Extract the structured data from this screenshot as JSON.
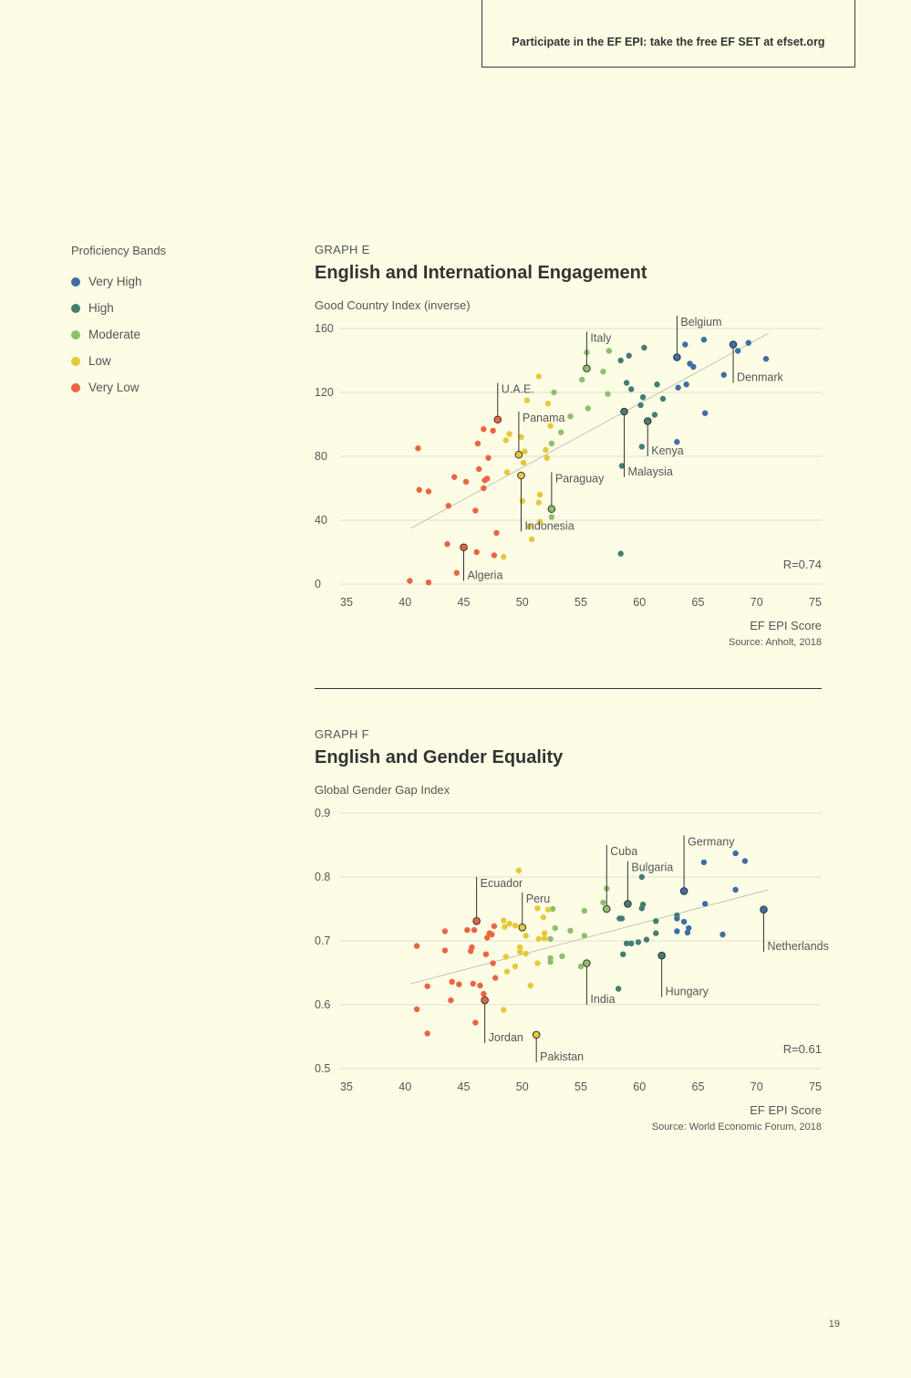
{
  "banner": {
    "text": "Participate in the EF EPI: take the free EF SET at efset.org"
  },
  "legend": {
    "title": "Proficiency Bands",
    "items": [
      {
        "label": "Very High",
        "color": "#3e6ea3"
      },
      {
        "label": "High",
        "color": "#447d72"
      },
      {
        "label": "Moderate",
        "color": "#8fbf6d"
      },
      {
        "label": "Low",
        "color": "#e6c938"
      },
      {
        "label": "Very Low",
        "color": "#ec6440"
      }
    ]
  },
  "page_number": "19",
  "chart_data": [
    {
      "type": "scatter",
      "graph_label": "GRAPH E",
      "title": "English and International Engagement",
      "ylabel": "Good Country Index (inverse)",
      "xlabel": "EF EPI Score",
      "source": "Source: Anholt, 2018",
      "annotation": "R=0.74",
      "xlim": [
        35,
        75
      ],
      "ylim": [
        0,
        160
      ],
      "xticks": [
        35,
        40,
        45,
        50,
        55,
        60,
        65,
        70,
        75
      ],
      "yticks": [
        0,
        40,
        80,
        120,
        160
      ],
      "trend": [
        [
          40.5,
          35
        ],
        [
          71,
          157
        ]
      ],
      "points": [
        [
          68.0,
          150,
          0
        ],
        [
          68.4,
          146,
          0
        ],
        [
          69.3,
          151,
          0
        ],
        [
          70.8,
          141,
          0
        ],
        [
          65.5,
          153,
          0
        ],
        [
          63.2,
          142,
          0
        ],
        [
          63.9,
          150,
          0
        ],
        [
          64.3,
          138,
          0
        ],
        [
          64.6,
          136,
          0
        ],
        [
          63.3,
          123,
          0
        ],
        [
          64.0,
          125,
          0
        ],
        [
          65.6,
          107,
          0
        ],
        [
          67.2,
          131,
          0
        ],
        [
          63.2,
          89,
          0
        ],
        [
          60.4,
          148,
          1
        ],
        [
          59.1,
          143,
          1
        ],
        [
          58.4,
          140,
          1
        ],
        [
          58.9,
          126,
          1
        ],
        [
          59.3,
          122,
          1
        ],
        [
          60.1,
          112,
          1
        ],
        [
          60.3,
          117,
          1
        ],
        [
          61.5,
          125,
          1
        ],
        [
          62.0,
          116,
          1
        ],
        [
          58.7,
          108,
          1
        ],
        [
          60.7,
          102,
          1
        ],
        [
          61.3,
          106,
          1
        ],
        [
          60.2,
          86,
          1
        ],
        [
          58.5,
          74,
          1
        ],
        [
          58.4,
          19,
          1
        ],
        [
          57.4,
          146,
          2
        ],
        [
          55.5,
          135,
          2
        ],
        [
          55.5,
          145,
          2
        ],
        [
          55.1,
          128,
          2
        ],
        [
          56.9,
          133,
          2
        ],
        [
          57.3,
          119,
          2
        ],
        [
          55.6,
          110,
          2
        ],
        [
          52.7,
          120,
          2
        ],
        [
          54.1,
          105,
          2
        ],
        [
          53.3,
          95,
          2
        ],
        [
          52.5,
          88,
          2
        ],
        [
          52.5,
          47,
          2
        ],
        [
          52.5,
          42,
          2
        ],
        [
          51.4,
          130,
          3
        ],
        [
          50.4,
          115,
          3
        ],
        [
          52.2,
          113,
          3
        ],
        [
          52.4,
          99,
          3
        ],
        [
          49.9,
          92,
          3
        ],
        [
          49.7,
          81,
          3
        ],
        [
          50.2,
          83,
          3
        ],
        [
          48.9,
          94,
          3
        ],
        [
          48.6,
          90,
          3
        ],
        [
          48.7,
          70,
          3
        ],
        [
          50.1,
          76,
          3
        ],
        [
          52.0,
          84,
          3
        ],
        [
          52.1,
          79,
          3
        ],
        [
          49.9,
          68,
          3
        ],
        [
          51.5,
          56,
          3
        ],
        [
          51.4,
          51,
          3
        ],
        [
          50.0,
          52,
          3
        ],
        [
          51.5,
          39,
          3
        ],
        [
          50.8,
          28,
          3
        ],
        [
          48.4,
          17,
          3
        ],
        [
          50.6,
          36,
          3
        ],
        [
          47.9,
          103,
          4
        ],
        [
          46.7,
          97,
          4
        ],
        [
          47.5,
          96,
          4
        ],
        [
          46.2,
          88,
          4
        ],
        [
          47.1,
          79,
          4
        ],
        [
          41.1,
          85,
          4
        ],
        [
          46.3,
          72,
          4
        ],
        [
          47.0,
          66,
          4
        ],
        [
          46.8,
          65,
          4
        ],
        [
          45.2,
          64,
          4
        ],
        [
          44.2,
          67,
          4
        ],
        [
          46.7,
          60,
          4
        ],
        [
          41.2,
          59,
          4
        ],
        [
          42.0,
          58,
          4
        ],
        [
          43.7,
          49,
          4
        ],
        [
          46.0,
          46,
          4
        ],
        [
          47.8,
          32,
          4
        ],
        [
          43.6,
          25,
          4
        ],
        [
          45.0,
          23,
          4
        ],
        [
          46.1,
          20,
          4
        ],
        [
          47.6,
          18,
          4
        ],
        [
          44.4,
          7,
          4
        ],
        [
          40.4,
          2,
          4
        ],
        [
          42.0,
          1,
          4
        ]
      ],
      "labels": [
        {
          "text": "Belgium",
          "x": 63.2,
          "y": 142,
          "lx": 63.2,
          "ly": 168,
          "side": "right"
        },
        {
          "text": "Denmark",
          "x": 68.0,
          "y": 150,
          "lx": 68.0,
          "ly": 126,
          "side": "right"
        },
        {
          "text": "Italy",
          "x": 55.5,
          "y": 135,
          "lx": 55.5,
          "ly": 158,
          "side": "right"
        },
        {
          "text": "U.A.E.",
          "x": 47.9,
          "y": 103,
          "lx": 47.9,
          "ly": 126,
          "side": "right"
        },
        {
          "text": "Panama",
          "x": 49.7,
          "y": 81,
          "lx": 49.7,
          "ly": 108,
          "side": "right"
        },
        {
          "text": "Paraguay",
          "x": 52.5,
          "y": 47,
          "lx": 52.5,
          "ly": 70,
          "side": "right"
        },
        {
          "text": "Indonesia",
          "x": 49.9,
          "y": 68,
          "lx": 49.9,
          "ly": 33,
          "side": "right"
        },
        {
          "text": "Algeria",
          "x": 45.0,
          "y": 23,
          "lx": 45.0,
          "ly": 2,
          "side": "right"
        },
        {
          "text": "Malaysia",
          "x": 58.7,
          "y": 108,
          "lx": 58.7,
          "ly": 67,
          "side": "right"
        },
        {
          "text": "Kenya",
          "x": 60.7,
          "y": 102,
          "lx": 60.7,
          "ly": 80,
          "side": "right"
        }
      ]
    },
    {
      "type": "scatter",
      "graph_label": "GRAPH F",
      "title": "English and Gender Equality",
      "ylabel": "Global Gender Gap Index",
      "xlabel": "EF EPI Score",
      "source": "Source: World Economic Forum, 2018",
      "annotation": "R=0.61",
      "xlim": [
        35,
        75
      ],
      "ylim": [
        0.5,
        0.9
      ],
      "xticks": [
        35,
        40,
        45,
        50,
        55,
        60,
        65,
        70,
        75
      ],
      "yticks": [
        0.5,
        0.6,
        0.7,
        0.8,
        0.9
      ],
      "ytick_labels": [
        "0.5",
        "0.6",
        "0.7",
        "0.8",
        "0.9"
      ],
      "trend": [
        [
          40.5,
          0.633
        ],
        [
          71,
          0.78
        ]
      ],
      "points": [
        [
          68.2,
          0.837,
          0
        ],
        [
          69.0,
          0.825,
          0
        ],
        [
          68.2,
          0.78,
          0
        ],
        [
          63.8,
          0.778,
          0
        ],
        [
          65.5,
          0.823,
          0
        ],
        [
          65.6,
          0.758,
          0
        ],
        [
          70.6,
          0.749,
          0
        ],
        [
          63.2,
          0.735,
          0
        ],
        [
          63.8,
          0.73,
          0
        ],
        [
          64.2,
          0.72,
          0
        ],
        [
          63.2,
          0.715,
          0
        ],
        [
          64.1,
          0.713,
          0
        ],
        [
          67.1,
          0.71,
          0
        ],
        [
          60.2,
          0.8,
          1
        ],
        [
          59.0,
          0.758,
          1
        ],
        [
          60.3,
          0.757,
          1
        ],
        [
          60.2,
          0.751,
          1
        ],
        [
          58.3,
          0.735,
          1
        ],
        [
          58.5,
          0.735,
          1
        ],
        [
          61.4,
          0.731,
          1
        ],
        [
          63.2,
          0.74,
          1
        ],
        [
          61.4,
          0.712,
          1
        ],
        [
          58.9,
          0.696,
          1
        ],
        [
          59.3,
          0.696,
          1
        ],
        [
          59.9,
          0.698,
          1
        ],
        [
          60.6,
          0.702,
          1
        ],
        [
          58.6,
          0.679,
          1
        ],
        [
          61.9,
          0.677,
          1
        ],
        [
          58.2,
          0.625,
          1
        ],
        [
          57.2,
          0.782,
          2
        ],
        [
          56.9,
          0.76,
          2
        ],
        [
          57.2,
          0.75,
          2
        ],
        [
          55.3,
          0.747,
          2
        ],
        [
          52.6,
          0.75,
          2
        ],
        [
          52.8,
          0.72,
          2
        ],
        [
          54.1,
          0.716,
          2
        ],
        [
          55.3,
          0.708,
          2
        ],
        [
          52.4,
          0.703,
          2
        ],
        [
          53.4,
          0.676,
          2
        ],
        [
          52.4,
          0.667,
          2
        ],
        [
          52.4,
          0.673,
          2
        ],
        [
          55.5,
          0.665,
          2
        ],
        [
          55.0,
          0.66,
          2
        ],
        [
          49.7,
          0.81,
          3
        ],
        [
          50.0,
          0.721,
          3
        ],
        [
          51.3,
          0.751,
          3
        ],
        [
          52.2,
          0.749,
          3
        ],
        [
          48.4,
          0.732,
          3
        ],
        [
          48.9,
          0.727,
          3
        ],
        [
          49.4,
          0.724,
          3
        ],
        [
          48.5,
          0.722,
          3
        ],
        [
          50.3,
          0.708,
          3
        ],
        [
          51.4,
          0.703,
          3
        ],
        [
          51.9,
          0.712,
          3
        ],
        [
          51.9,
          0.704,
          3
        ],
        [
          51.8,
          0.737,
          3
        ],
        [
          49.8,
          0.69,
          3
        ],
        [
          49.8,
          0.683,
          3
        ],
        [
          50.3,
          0.68,
          3
        ],
        [
          48.6,
          0.675,
          3
        ],
        [
          49.4,
          0.66,
          3
        ],
        [
          48.7,
          0.652,
          3
        ],
        [
          51.3,
          0.665,
          3
        ],
        [
          50.7,
          0.63,
          3
        ],
        [
          48.4,
          0.592,
          3
        ],
        [
          51.2,
          0.553,
          3
        ],
        [
          46.1,
          0.731,
          4
        ],
        [
          45.3,
          0.717,
          4
        ],
        [
          45.9,
          0.717,
          4
        ],
        [
          47.2,
          0.712,
          4
        ],
        [
          47.0,
          0.705,
          4
        ],
        [
          47.4,
          0.71,
          4
        ],
        [
          47.6,
          0.723,
          4
        ],
        [
          43.4,
          0.715,
          4
        ],
        [
          41.0,
          0.692,
          4
        ],
        [
          45.7,
          0.69,
          4
        ],
        [
          45.6,
          0.684,
          4
        ],
        [
          43.4,
          0.685,
          4
        ],
        [
          46.9,
          0.679,
          4
        ],
        [
          47.5,
          0.665,
          4
        ],
        [
          47.7,
          0.642,
          4
        ],
        [
          44.0,
          0.636,
          4
        ],
        [
          44.6,
          0.632,
          4
        ],
        [
          45.8,
          0.633,
          4
        ],
        [
          46.4,
          0.63,
          4
        ],
        [
          41.9,
          0.629,
          4
        ],
        [
          46.7,
          0.617,
          4
        ],
        [
          46.8,
          0.607,
          4
        ],
        [
          43.9,
          0.607,
          4
        ],
        [
          41.0,
          0.593,
          4
        ],
        [
          46.0,
          0.572,
          4
        ],
        [
          41.9,
          0.555,
          4
        ]
      ],
      "labels": [
        {
          "text": "Germany",
          "x": 63.8,
          "y": 0.778,
          "lx": 63.8,
          "ly": 0.865,
          "side": "right"
        },
        {
          "text": "Cuba",
          "x": 57.2,
          "y": 0.75,
          "lx": 57.2,
          "ly": 0.85,
          "side": "right"
        },
        {
          "text": "Bulgaria",
          "x": 59.0,
          "y": 0.758,
          "lx": 59.0,
          "ly": 0.825,
          "side": "right"
        },
        {
          "text": "Ecuador",
          "x": 46.1,
          "y": 0.731,
          "lx": 46.1,
          "ly": 0.8,
          "side": "right"
        },
        {
          "text": "Peru",
          "x": 50.0,
          "y": 0.721,
          "lx": 50.0,
          "ly": 0.776,
          "side": "right"
        },
        {
          "text": "Netherlands",
          "x": 70.6,
          "y": 0.749,
          "lx": 70.6,
          "ly": 0.683,
          "side": "right"
        },
        {
          "text": "Hungary",
          "x": 61.9,
          "y": 0.677,
          "lx": 61.9,
          "ly": 0.612,
          "side": "right"
        },
        {
          "text": "India",
          "x": 55.5,
          "y": 0.665,
          "lx": 55.5,
          "ly": 0.6,
          "side": "right"
        },
        {
          "text": "Jordan",
          "x": 46.8,
          "y": 0.607,
          "lx": 46.8,
          "ly": 0.54,
          "side": "right"
        },
        {
          "text": "Pakistan",
          "x": 51.2,
          "y": 0.553,
          "lx": 51.2,
          "ly": 0.51,
          "side": "right"
        }
      ]
    }
  ]
}
